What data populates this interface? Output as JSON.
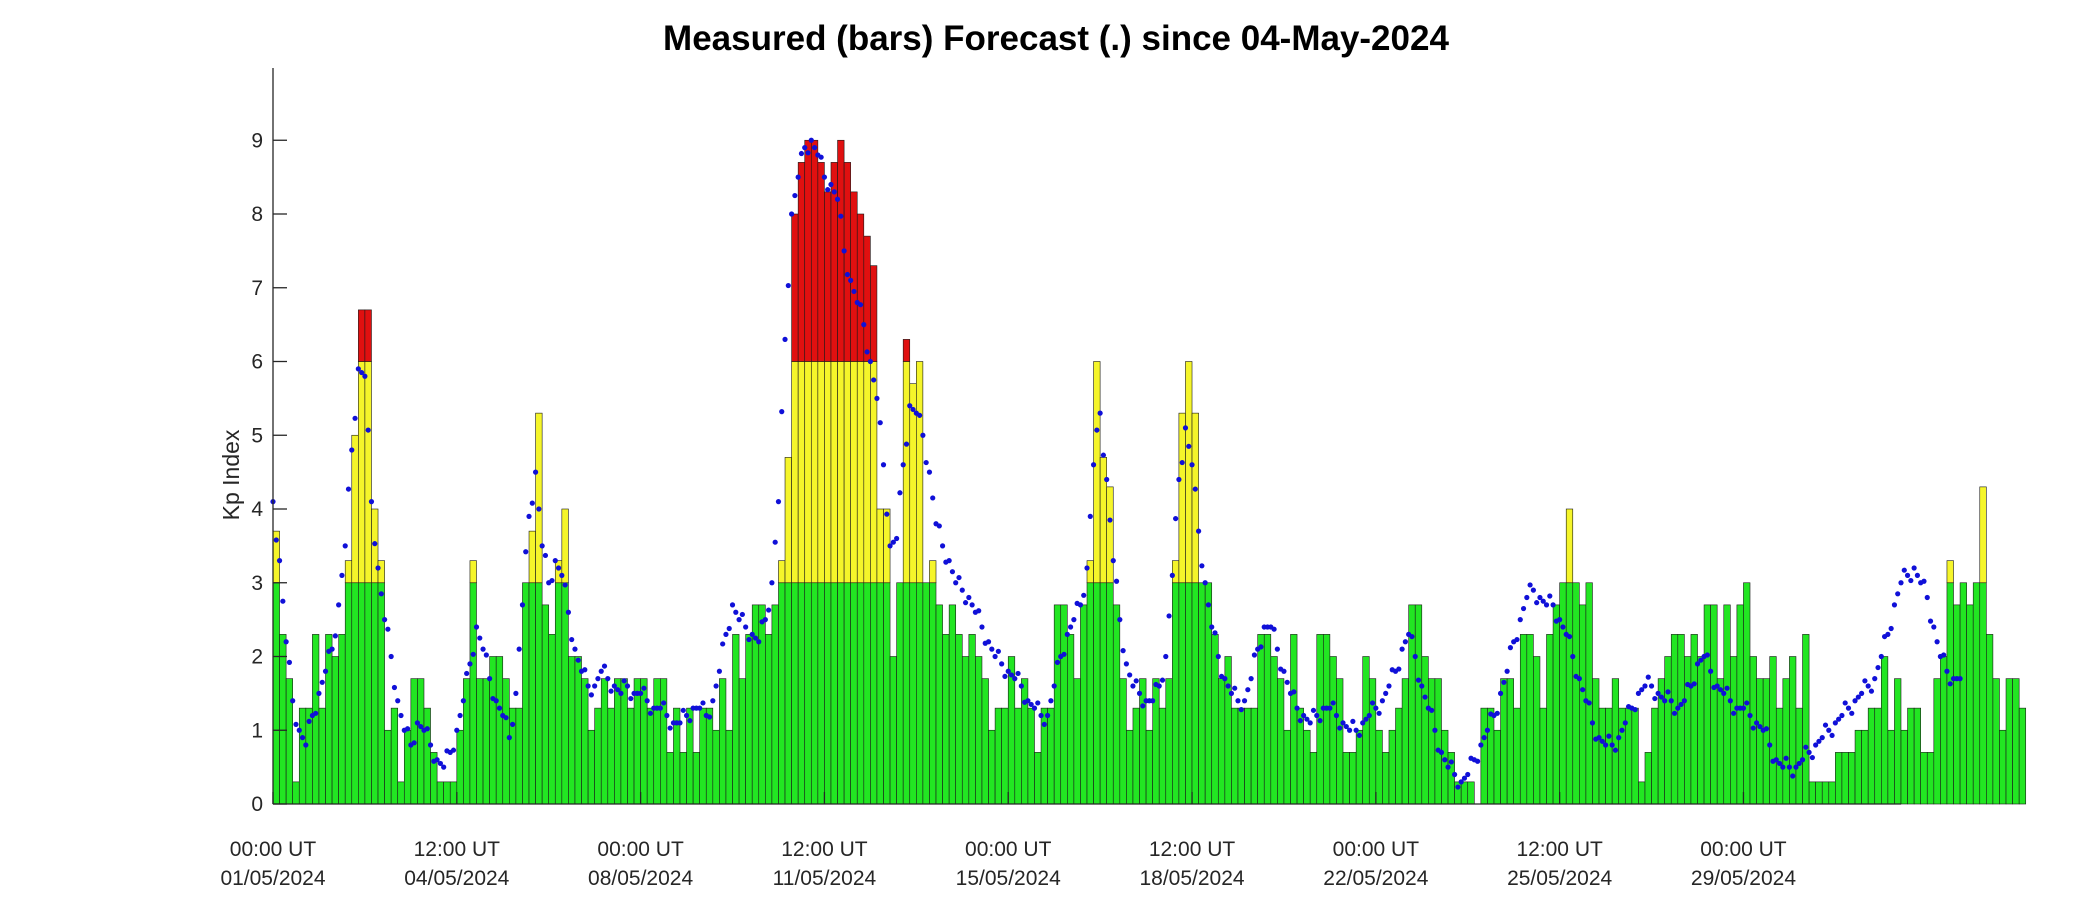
{
  "chart_data": {
    "type": "bar",
    "title": "Measured (bars) Forecast (.) since 04-May-2024",
    "ylabel": "Kp Index",
    "xlabel": "",
    "ylim": [
      0,
      10
    ],
    "yticks": [
      0,
      1,
      2,
      3,
      4,
      5,
      6,
      7,
      8,
      9
    ],
    "x_start": "01/05/2024 00:00 UT",
    "bar_width_hours": 3,
    "xtick_labels": [
      [
        "00:00 UT",
        "01/05/2024"
      ],
      [
        "12:00 UT",
        "04/05/2024"
      ],
      [
        "00:00 UT",
        "08/05/2024"
      ],
      [
        "12:00 UT",
        "11/05/2024"
      ],
      [
        "00:00 UT",
        "15/05/2024"
      ],
      [
        "12:00 UT",
        "18/05/2024"
      ],
      [
        "00:00 UT",
        "22/05/2024"
      ],
      [
        "12:00 UT",
        "25/05/2024"
      ],
      [
        "00:00 UT",
        "29/05/2024"
      ]
    ],
    "color_thresholds": {
      "green_max": 3,
      "yellow_max": 6
    },
    "colors": {
      "green": "#22e622",
      "yellow": "#f5f52a",
      "red": "#e01010",
      "forecast": "#1010d8",
      "axis": "#262626"
    },
    "series": [
      {
        "name": "Measured",
        "kind": "bars",
        "values": [
          3.7,
          2.3,
          1.7,
          0.3,
          1.3,
          1.3,
          2.3,
          1.3,
          2.3,
          2.0,
          2.3,
          3.3,
          5.0,
          6.7,
          6.7,
          4.0,
          3.3,
          1.0,
          1.3,
          0.3,
          1.0,
          1.7,
          1.7,
          1.3,
          0.7,
          0.3,
          0.3,
          0.3,
          1.0,
          1.7,
          3.3,
          1.7,
          1.7,
          2.0,
          2.0,
          1.7,
          1.3,
          1.3,
          3.0,
          3.7,
          5.3,
          2.7,
          2.3,
          3.3,
          4.0,
          2.0,
          2.0,
          1.7,
          1.0,
          1.3,
          1.7,
          1.3,
          1.7,
          1.7,
          1.3,
          1.7,
          1.7,
          1.3,
          1.7,
          1.7,
          0.7,
          1.3,
          0.7,
          1.3,
          0.7,
          1.3,
          1.3,
          1.0,
          1.7,
          1.0,
          2.3,
          1.7,
          2.3,
          2.7,
          2.7,
          2.3,
          2.7,
          3.3,
          4.7,
          8.0,
          8.7,
          9.0,
          9.0,
          8.7,
          8.3,
          8.7,
          9.0,
          8.7,
          8.3,
          8.0,
          7.7,
          7.3,
          4.0,
          4.0,
          2.0,
          3.0,
          6.3,
          5.7,
          6.0,
          3.0,
          3.3,
          2.7,
          2.3,
          2.7,
          2.3,
          2.0,
          2.3,
          2.0,
          1.7,
          1.0,
          1.3,
          1.3,
          2.0,
          1.3,
          1.7,
          1.3,
          0.7,
          1.3,
          1.3,
          2.7,
          2.7,
          2.3,
          1.7,
          2.7,
          3.3,
          6.0,
          4.7,
          4.3,
          2.7,
          1.7,
          1.0,
          1.3,
          1.7,
          1.0,
          1.7,
          1.3,
          1.7,
          3.3,
          5.3,
          6.0,
          5.3,
          3.0,
          3.0,
          2.3,
          1.7,
          2.0,
          1.3,
          1.3,
          1.3,
          1.3,
          2.3,
          2.3,
          2.0,
          1.7,
          1.0,
          2.3,
          1.3,
          1.0,
          0.7,
          2.3,
          2.3,
          2.0,
          1.7,
          0.7,
          0.7,
          1.0,
          2.0,
          1.7,
          1.0,
          0.7,
          1.0,
          1.3,
          1.7,
          2.7,
          2.7,
          2.0,
          1.7,
          1.7,
          1.0,
          0.7,
          0.3,
          0.3,
          0.3,
          0.0,
          1.3,
          1.3,
          1.0,
          1.7,
          1.7,
          1.3,
          2.3,
          2.3,
          2.0,
          1.3,
          2.3,
          2.7,
          3.0,
          4.0,
          3.0,
          2.7,
          3.0,
          1.7,
          1.3,
          1.3,
          1.7,
          1.3,
          1.3,
          1.3,
          0.3,
          0.7,
          1.3,
          1.7,
          2.0,
          2.3,
          2.3,
          2.0,
          2.3,
          2.0,
          2.7,
          2.7,
          1.7,
          2.7,
          2.0,
          2.7,
          3.0,
          2.0,
          1.7,
          1.7,
          2.0,
          1.3,
          1.7,
          2.0,
          1.3,
          2.3,
          0.3,
          0.3,
          0.3,
          0.3,
          0.7,
          0.7,
          0.7,
          1.0,
          1.0,
          1.3,
          1.3,
          2.0,
          1.0,
          1.7,
          1.0,
          1.3,
          1.3,
          0.7,
          0.7,
          1.7,
          2.0,
          3.3,
          2.7,
          3.0,
          2.7,
          3.0,
          4.3,
          2.3,
          1.7,
          1.0,
          1.7,
          1.7,
          1.3
        ]
      },
      {
        "name": "Forecast",
        "kind": "points",
        "values": [
          4.1,
          3.3,
          2.2,
          1.4,
          1.0,
          0.8,
          1.2,
          1.5,
          1.8,
          2.1,
          2.7,
          3.5,
          4.8,
          5.9,
          5.8,
          4.1,
          3.2,
          2.5,
          2.0,
          1.4,
          1.0,
          0.8,
          1.1,
          1.0,
          0.8,
          0.6,
          0.5,
          0.7,
          1.0,
          1.4,
          1.9,
          2.4,
          2.1,
          1.7,
          1.4,
          1.2,
          0.9,
          1.5,
          2.7,
          3.9,
          4.5,
          3.5,
          3.0,
          3.3,
          3.1,
          2.6,
          2.1,
          1.8,
          1.6,
          1.6,
          1.8,
          1.7,
          1.6,
          1.5,
          1.6,
          1.5,
          1.5,
          1.4,
          1.3,
          1.3,
          1.2,
          1.1,
          1.1,
          1.2,
          1.3,
          1.3,
          1.2,
          1.4,
          1.8,
          2.3,
          2.7,
          2.5,
          2.4,
          2.3,
          2.2,
          2.5,
          3.0,
          4.1,
          6.3,
          8.0,
          8.5,
          8.9,
          9.0,
          8.8,
          8.5,
          8.4,
          8.2,
          7.5,
          7.1,
          6.8,
          6.5,
          6.0,
          5.5,
          4.6,
          3.5,
          3.6,
          4.6,
          5.4,
          5.3,
          5.0,
          4.5,
          3.8,
          3.5,
          3.3,
          3.0,
          2.9,
          2.8,
          2.6,
          2.4,
          2.2,
          2.0,
          1.9,
          1.8,
          1.7,
          1.6,
          1.4,
          1.3,
          1.2,
          1.2,
          1.6,
          2.0,
          2.3,
          2.5,
          2.7,
          3.2,
          4.6,
          5.3,
          4.4,
          3.3,
          2.5,
          1.9,
          1.6,
          1.5,
          1.4,
          1.4,
          1.6,
          2.0,
          3.1,
          4.4,
          5.1,
          4.6,
          3.7,
          3.0,
          2.4,
          2.0,
          1.7,
          1.5,
          1.4,
          1.4,
          1.7,
          2.1,
          2.4,
          2.4,
          2.1,
          1.8,
          1.5,
          1.3,
          1.2,
          1.1,
          1.2,
          1.3,
          1.3,
          1.2,
          1.1,
          1.0,
          1.0,
          1.1,
          1.2,
          1.3,
          1.4,
          1.6,
          1.8,
          2.1,
          2.3,
          2.0,
          1.6,
          1.3,
          1.0,
          0.7,
          0.5,
          0.4,
          0.3,
          0.4,
          0.6,
          0.8,
          1.0,
          1.2,
          1.5,
          1.8,
          2.2,
          2.5,
          2.8,
          2.9,
          2.8,
          2.7,
          2.7,
          2.5,
          2.3,
          2.0,
          1.7,
          1.4,
          1.1,
          0.9,
          0.8,
          0.8,
          0.9,
          1.1,
          1.3,
          1.5,
          1.6,
          1.6,
          1.5,
          1.4,
          1.4,
          1.3,
          1.4,
          1.6,
          1.9,
          2.0,
          1.8,
          1.6,
          1.5,
          1.4,
          1.3,
          1.3,
          1.2,
          1.1,
          1.0,
          0.8,
          0.6,
          0.5,
          0.5,
          0.5,
          0.6,
          0.7,
          0.8,
          0.9,
          1.0,
          1.1,
          1.2,
          1.3,
          1.4,
          1.5,
          1.6,
          1.7,
          2.0,
          2.3,
          2.7,
          3.0,
          3.1,
          3.2,
          3.0,
          2.8,
          2.4,
          2.0,
          1.8,
          1.7,
          1.7
        ]
      }
    ]
  }
}
